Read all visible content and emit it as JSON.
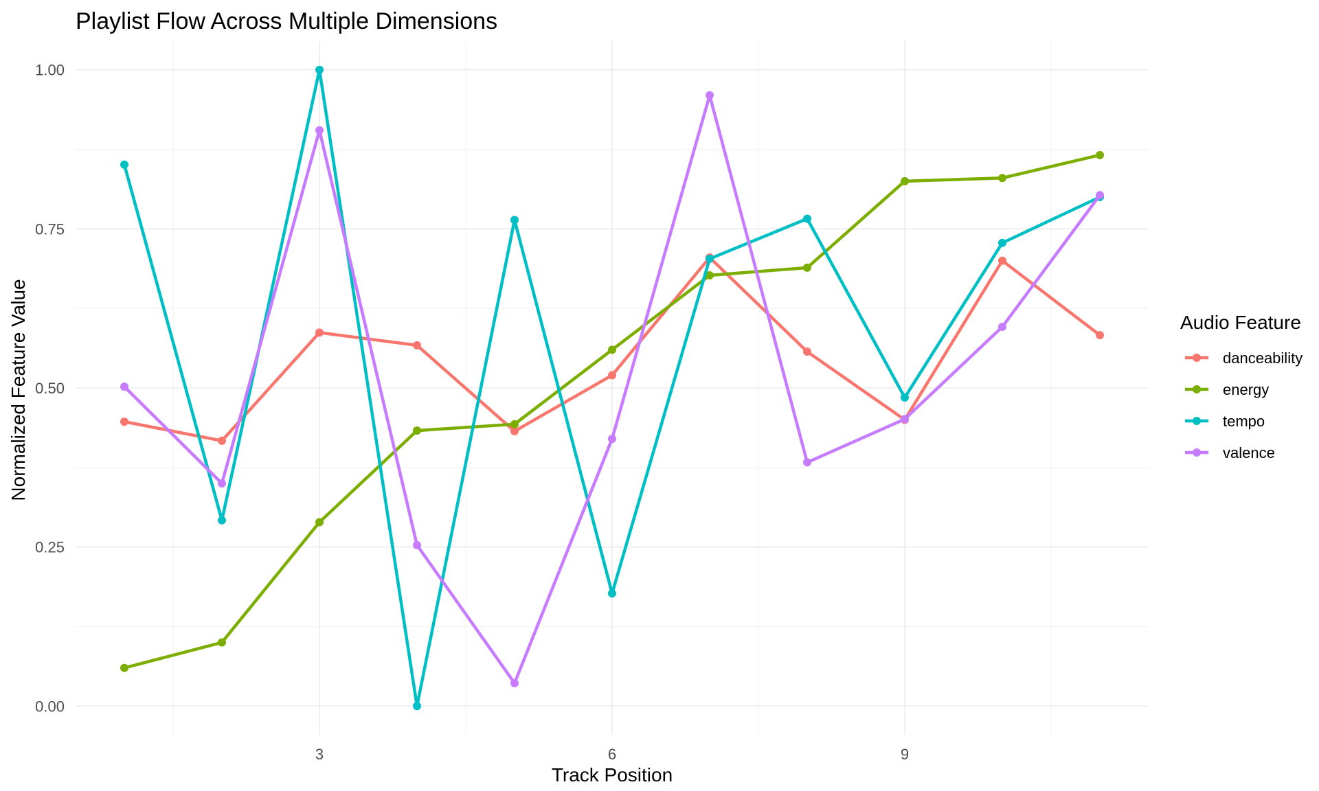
{
  "chart_data": {
    "type": "line",
    "title": "Playlist Flow Across Multiple Dimensions",
    "xlabel": "Track Position",
    "ylabel": "Normalized Feature Value",
    "x": [
      1,
      2,
      3,
      4,
      5,
      6,
      7,
      8,
      9,
      10,
      11
    ],
    "xlim": [
      0.5,
      11.5
    ],
    "ylim": [
      -0.045,
      1.045
    ],
    "x_ticks": [
      3,
      6,
      9
    ],
    "x_tick_labels": [
      "3",
      "6",
      "9"
    ],
    "y_ticks": [
      0,
      0.25,
      0.5,
      0.75,
      1
    ],
    "y_tick_labels": [
      "0.00",
      "0.25",
      "0.50",
      "0.75",
      "1.00"
    ],
    "grid": true,
    "legend": {
      "title": "Audio Feature",
      "position": "right"
    },
    "series": [
      {
        "name": "danceability",
        "color": "#F8766D",
        "values": [
          0.447,
          0.417,
          0.587,
          0.567,
          0.432,
          0.52,
          0.705,
          0.557,
          0.45,
          0.7,
          0.583
        ]
      },
      {
        "name": "energy",
        "color": "#7CAE00",
        "values": [
          0.06,
          0.1,
          0.289,
          0.433,
          0.443,
          0.56,
          0.677,
          0.689,
          0.825,
          0.83,
          0.866
        ]
      },
      {
        "name": "tempo",
        "color": "#00BFC4",
        "values": [
          0.851,
          0.292,
          1.0,
          0.0,
          0.764,
          0.177,
          0.703,
          0.766,
          0.485,
          0.728,
          0.8
        ]
      },
      {
        "name": "valence",
        "color": "#C77CFF",
        "values": [
          0.502,
          0.35,
          0.905,
          0.253,
          0.036,
          0.42,
          0.96,
          0.383,
          0.451,
          0.596,
          0.803
        ]
      }
    ]
  }
}
